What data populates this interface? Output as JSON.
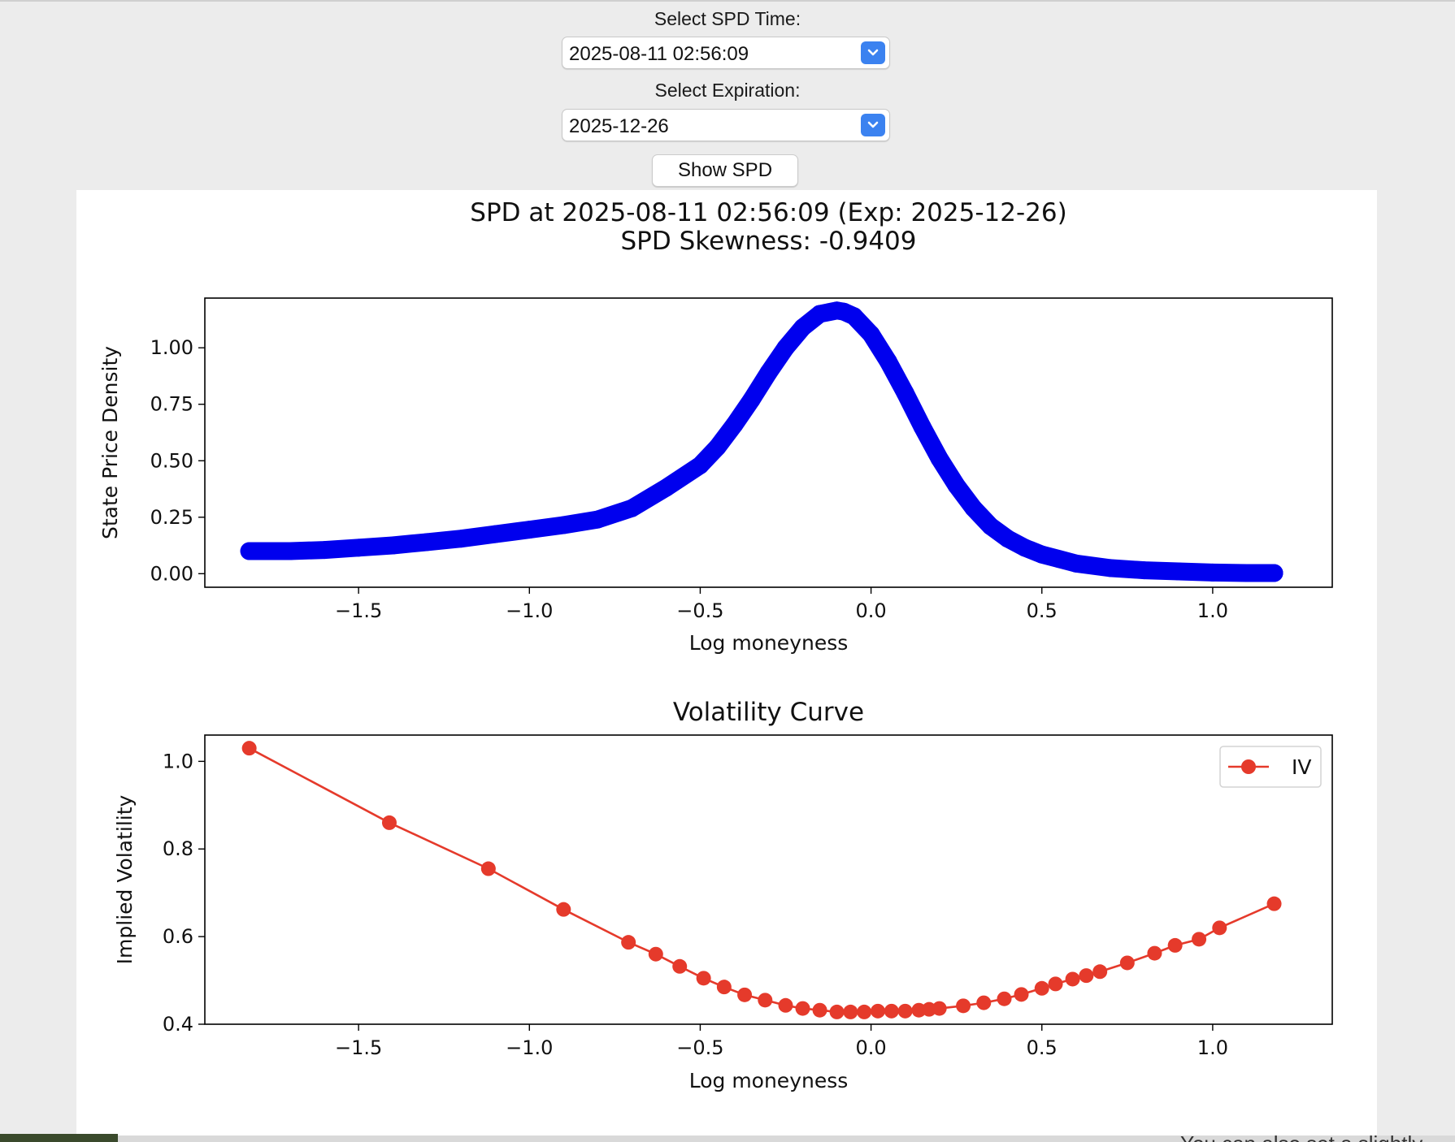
{
  "controls": {
    "time_label": "Select SPD Time:",
    "time_value": "2025-08-11 02:56:09",
    "exp_label": "Select Expiration:",
    "exp_value": "2025-12-26",
    "show_button": "Show SPD",
    "dropdown_icon": "chevron-down-icon"
  },
  "background_text": "You can also set a slightly",
  "chart_data": [
    {
      "type": "scatter",
      "title": "SPD at 2025-08-11 02:56:09 (Exp: 2025-12-26)",
      "subtitle": "SPD Skewness: -0.9409",
      "xlabel": "Log moneyness",
      "ylabel": "State Price Density",
      "xlim": [
        -1.95,
        1.35
      ],
      "ylim": [
        -0.06,
        1.22
      ],
      "xticks": [
        -1.5,
        -1.0,
        -0.5,
        0.0,
        0.5,
        1.0
      ],
      "xtick_labels": [
        "−1.5",
        "−1.0",
        "−0.5",
        "0.0",
        "0.5",
        "1.0"
      ],
      "yticks": [
        0.0,
        0.25,
        0.5,
        0.75,
        1.0
      ],
      "ytick_labels": [
        "0.00",
        "0.25",
        "0.50",
        "0.75",
        "1.00"
      ],
      "color": "#0000ee",
      "grid": false,
      "x": [
        -1.82,
        -1.7,
        -1.6,
        -1.5,
        -1.4,
        -1.3,
        -1.2,
        -1.1,
        -1.0,
        -0.9,
        -0.8,
        -0.7,
        -0.6,
        -0.5,
        -0.45,
        -0.4,
        -0.35,
        -0.3,
        -0.25,
        -0.2,
        -0.15,
        -0.1,
        -0.08,
        -0.05,
        0.0,
        0.05,
        0.1,
        0.15,
        0.2,
        0.25,
        0.3,
        0.35,
        0.4,
        0.45,
        0.5,
        0.55,
        0.6,
        0.7,
        0.8,
        0.9,
        1.0,
        1.1,
        1.18
      ],
      "y": [
        0.1,
        0.1,
        0.105,
        0.115,
        0.125,
        0.14,
        0.155,
        0.175,
        0.195,
        0.215,
        0.24,
        0.29,
        0.38,
        0.48,
        0.56,
        0.66,
        0.77,
        0.89,
        1.0,
        1.09,
        1.15,
        1.165,
        1.16,
        1.14,
        1.06,
        0.94,
        0.8,
        0.65,
        0.51,
        0.39,
        0.29,
        0.21,
        0.155,
        0.115,
        0.085,
        0.065,
        0.045,
        0.025,
        0.015,
        0.01,
        0.005,
        0.003,
        0.003
      ]
    },
    {
      "type": "line",
      "title": "Volatility Curve",
      "xlabel": "Log moneyness",
      "ylabel": "Implied Volatility",
      "xlim": [
        -1.95,
        1.35
      ],
      "ylim": [
        0.4,
        1.06
      ],
      "xticks": [
        -1.5,
        -1.0,
        -0.5,
        0.0,
        0.5,
        1.0
      ],
      "xtick_labels": [
        "−1.5",
        "−1.0",
        "−0.5",
        "0.0",
        "0.5",
        "1.0"
      ],
      "yticks": [
        0.4,
        0.6,
        0.8,
        1.0
      ],
      "ytick_labels": [
        "0.4",
        "0.6",
        "0.8",
        "1.0"
      ],
      "legend_position": "top-right",
      "grid": false,
      "series": [
        {
          "name": "IV",
          "color": "#e53a2b",
          "x": [
            -1.82,
            -1.41,
            -1.12,
            -0.9,
            -0.71,
            -0.63,
            -0.56,
            -0.49,
            -0.43,
            -0.37,
            -0.31,
            -0.25,
            -0.2,
            -0.15,
            -0.1,
            -0.06,
            -0.02,
            0.02,
            0.06,
            0.1,
            0.14,
            0.17,
            0.2,
            0.27,
            0.33,
            0.39,
            0.44,
            0.5,
            0.54,
            0.59,
            0.63,
            0.67,
            0.75,
            0.83,
            0.89,
            0.96,
            1.02,
            1.18
          ],
          "y": [
            1.03,
            0.86,
            0.755,
            0.662,
            0.587,
            0.56,
            0.532,
            0.505,
            0.485,
            0.467,
            0.455,
            0.443,
            0.436,
            0.432,
            0.428,
            0.428,
            0.428,
            0.43,
            0.43,
            0.43,
            0.432,
            0.434,
            0.436,
            0.442,
            0.449,
            0.458,
            0.468,
            0.482,
            0.492,
            0.503,
            0.511,
            0.52,
            0.54,
            0.562,
            0.58,
            0.594,
            0.62,
            0.675
          ]
        }
      ]
    }
  ]
}
